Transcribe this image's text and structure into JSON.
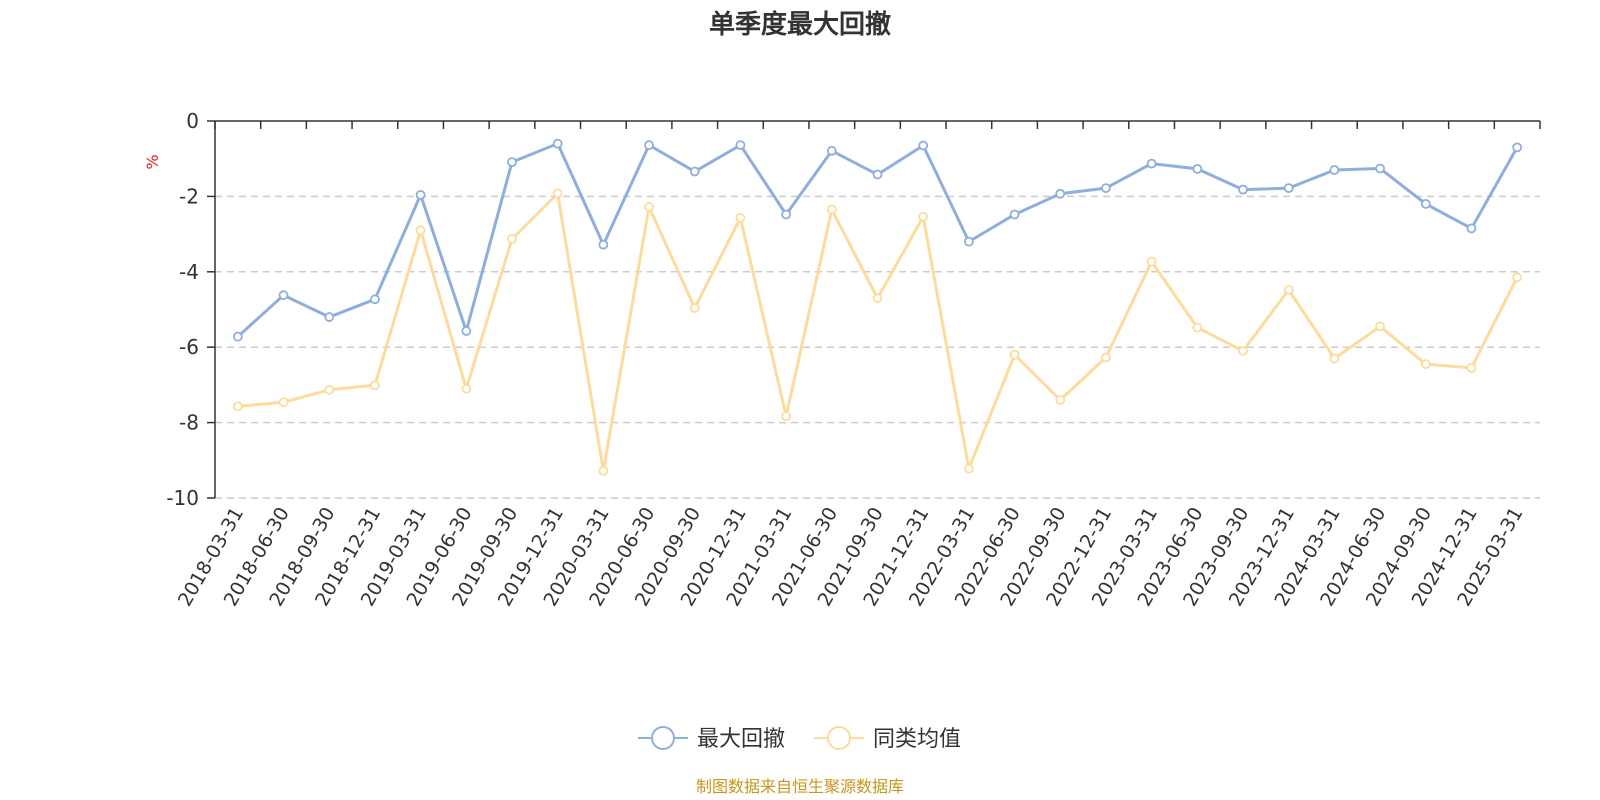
{
  "chart_data": {
    "type": "line",
    "title": "单季度最大回撤",
    "ylabel": "%",
    "ylim": [
      -10,
      0
    ],
    "yticks": [
      0,
      -2,
      -4,
      -6,
      -8,
      -10
    ],
    "grid": true,
    "legend_position": "bottom",
    "categories": [
      "2018-03-31",
      "2018-06-30",
      "2018-09-30",
      "2018-12-31",
      "2019-03-31",
      "2019-06-30",
      "2019-09-30",
      "2019-12-31",
      "2020-03-31",
      "2020-06-30",
      "2020-09-30",
      "2020-12-31",
      "2021-03-31",
      "2021-06-30",
      "2021-09-30",
      "2021-12-31",
      "2022-03-31",
      "2022-06-30",
      "2022-09-30",
      "2022-12-31",
      "2023-03-31",
      "2023-06-30",
      "2023-09-30",
      "2023-12-31",
      "2024-03-31",
      "2024-06-30",
      "2024-09-30",
      "2024-12-31",
      "2025-03-31"
    ],
    "series": [
      {
        "name": "最大回撤",
        "color": "#8eaedb",
        "values": [
          -5.72,
          -4.62,
          -5.2,
          -4.73,
          -1.96,
          -5.57,
          -1.09,
          -0.6,
          -3.28,
          -0.64,
          -1.34,
          -0.64,
          -2.48,
          -0.79,
          -1.42,
          -0.65,
          -3.2,
          -2.48,
          -1.93,
          -1.78,
          -1.13,
          -1.27,
          -1.82,
          -1.78,
          -1.3,
          -1.26,
          -2.2,
          -2.85,
          -0.7
        ]
      },
      {
        "name": "同类均值",
        "color": "#fcdb9c",
        "values": [
          -7.57,
          -7.46,
          -7.13,
          -7.01,
          -2.9,
          -7.1,
          -3.13,
          -1.92,
          -9.28,
          -2.28,
          -4.96,
          -2.57,
          -7.83,
          -2.35,
          -4.7,
          -2.54,
          -9.22,
          -6.2,
          -7.4,
          -6.27,
          -3.73,
          -5.48,
          -6.1,
          -4.48,
          -6.3,
          -5.45,
          -6.45,
          -6.55,
          -4.15
        ]
      }
    ]
  },
  "footer": {
    "source_text": "制图数据来自恒生聚源数据库",
    "color": "#c8961e"
  }
}
